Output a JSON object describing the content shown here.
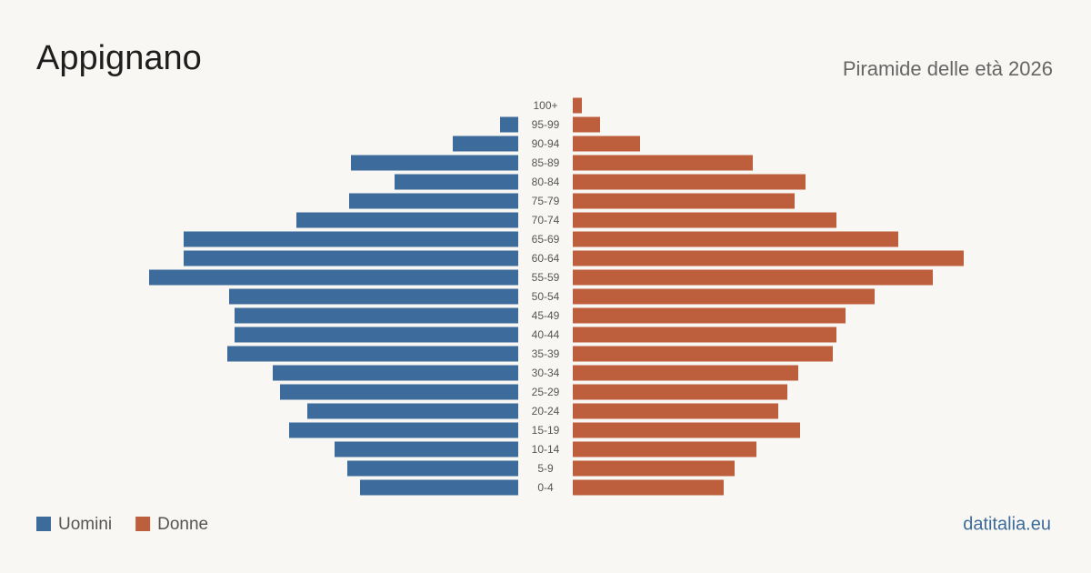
{
  "chart_data": {
    "type": "pyramid",
    "title": "Appignano",
    "subtitle": "Piramide delle età 2026",
    "source": "datitalia.eu",
    "categories": [
      "100+",
      "95-99",
      "90-94",
      "85-89",
      "80-84",
      "75-79",
      "70-74",
      "65-69",
      "60-64",
      "55-59",
      "50-54",
      "45-49",
      "40-44",
      "35-39",
      "30-34",
      "25-29",
      "20-24",
      "15-19",
      "10-14",
      "5-9",
      "0-4"
    ],
    "series": [
      {
        "name": "Uomini",
        "color": "#3d6b9c",
        "values": [
          0,
          10,
          36,
          92,
          68,
          93,
          122,
          184,
          184,
          203,
          159,
          156,
          156,
          160,
          135,
          131,
          116,
          126,
          101,
          94,
          87
        ]
      },
      {
        "name": "Donne",
        "color": "#bd5f3c",
        "values": [
          5,
          15,
          37,
          99,
          128,
          122,
          145,
          179,
          215,
          198,
          166,
          150,
          145,
          143,
          124,
          118,
          113,
          125,
          101,
          89,
          83
        ]
      }
    ]
  }
}
